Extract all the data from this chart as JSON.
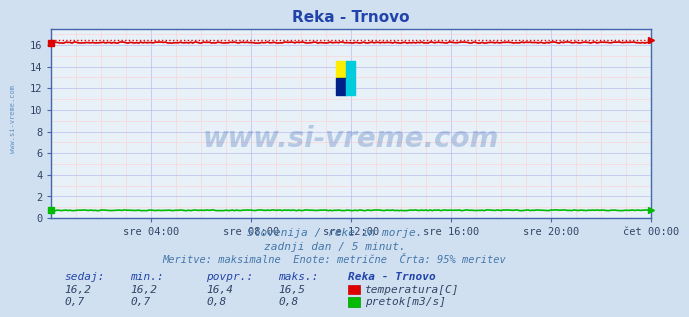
{
  "title": "Reka - Trnovo",
  "bg_color": "#d0e0f0",
  "plot_bg_color": "#e8f0f8",
  "temp_color": "#dd0000",
  "flow_color": "#00bb00",
  "x_ticks": [
    "sre 04:00",
    "sre 08:00",
    "sre 12:00",
    "sre 16:00",
    "sre 20:00",
    "čet 00:00"
  ],
  "x_tick_positions": [
    4,
    8,
    12,
    16,
    20,
    24
  ],
  "y_ticks": [
    0,
    2,
    4,
    6,
    8,
    10,
    12,
    14,
    16
  ],
  "ylim": [
    0,
    17.5
  ],
  "xlim": [
    0,
    24
  ],
  "temp_value": 16.2,
  "temp_max": 16.5,
  "flow_value": 0.7,
  "subtitle1": "Slovenija / reke in morje.",
  "subtitle2": "zadnji dan / 5 minut.",
  "subtitle3": "Meritve: maksimalne  Enote: metrične  Črta: 95% meritev",
  "table_headers": [
    "sedaj:",
    "min.:",
    "povpr.:",
    "maks.:",
    "Reka - Trnovo"
  ],
  "table_row1": [
    "16,2",
    "16,2",
    "16,4",
    "16,5",
    "temperatura[C]"
  ],
  "table_row2": [
    "0,7",
    "0,7",
    "0,8",
    "0,8",
    "pretok[m3/s]"
  ],
  "watermark": "www.si-vreme.com",
  "watermark_color": "#2255aa",
  "side_label": "www.si-vreme.com",
  "side_label_color": "#5588bb",
  "title_color": "#2244aa",
  "subtitle_color": "#4477aa",
  "table_header_color": "#2244aa",
  "table_val_color": "#334466"
}
